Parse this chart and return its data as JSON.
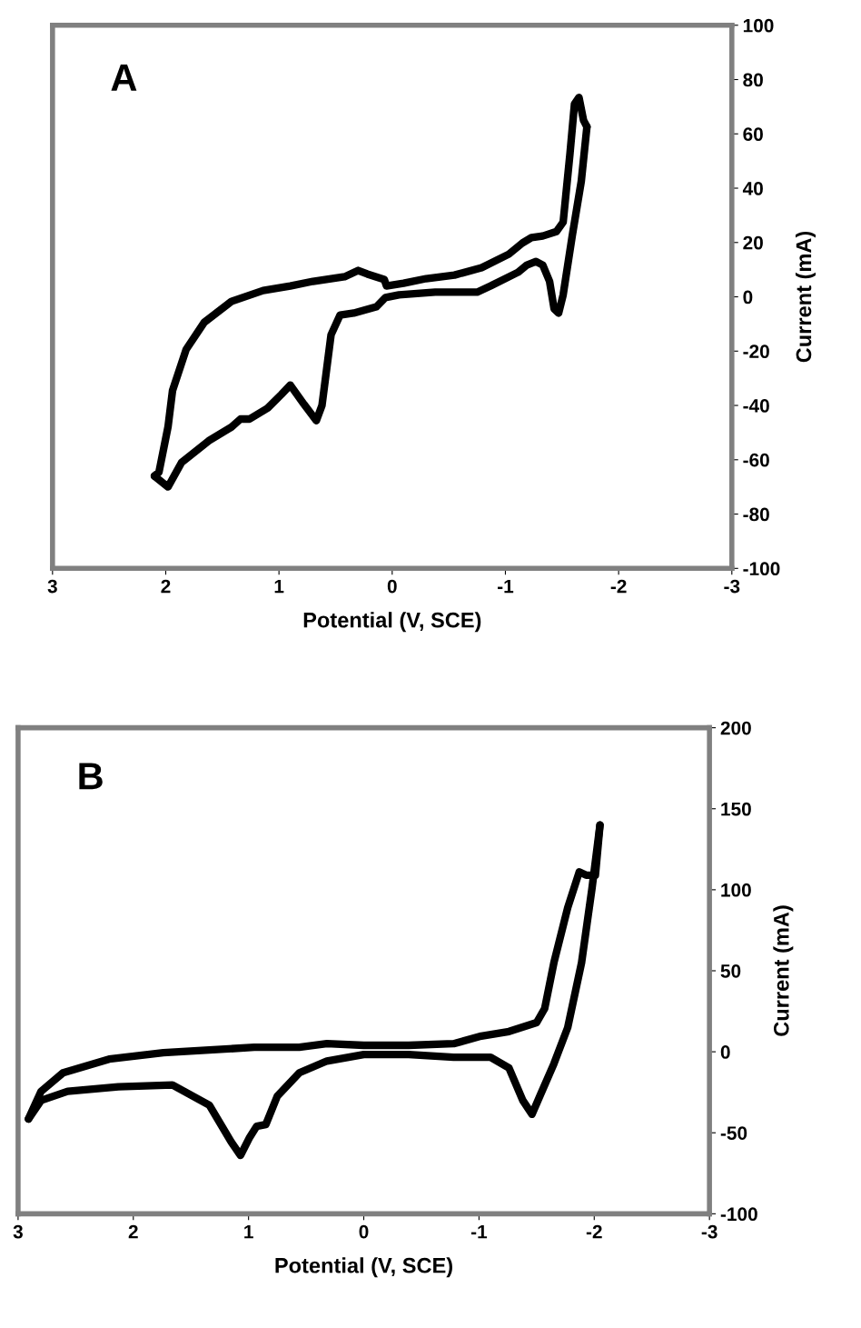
{
  "chart_data": [
    {
      "type": "line",
      "title": "A",
      "xlabel": "Potential (V, SCE)",
      "ylabel": "Current (mA)",
      "xlim": [
        3,
        -3
      ],
      "xticks": [
        3,
        2,
        1,
        0,
        -1,
        -2,
        -3
      ],
      "ylim": [
        -100,
        100
      ],
      "yticks": [
        -100,
        -80,
        -60,
        -40,
        -20,
        0,
        20,
        40,
        60,
        80,
        100
      ],
      "grid": false,
      "legend": false,
      "marker": "none",
      "line_style": "solid",
      "series": [
        {
          "color": "#000000",
          "x": [
            2.1,
            1.98,
            1.86,
            1.62,
            1.42,
            1.34,
            1.26,
            1.1,
            0.98,
            0.9,
            0.78,
            0.67,
            0.62,
            0.54,
            0.46,
            0.34,
            0.14,
            0.06,
            -0.06,
            -0.38,
            -0.75,
            -0.87,
            -1.11,
            -1.19,
            -1.27,
            -1.33,
            -1.39,
            -1.43,
            -1.47,
            -1.51,
            -1.59,
            -1.67,
            -1.72
          ],
          "values": [
            -66,
            -70,
            -61,
            -53,
            -48,
            -45,
            -45,
            -41,
            -36,
            -32.5,
            -39.5,
            -45.6,
            -40,
            -14,
            -6.7,
            -6,
            -3.7,
            -0.3,
            0.7,
            1.7,
            1.7,
            4,
            9,
            11.7,
            13,
            11.7,
            5.7,
            -4.4,
            -6,
            0.7,
            22.4,
            42.5,
            62.6
          ]
        },
        {
          "color": "#000000",
          "x": [
            -1.72,
            -1.69,
            -1.65,
            -1.61,
            -1.57,
            -1.51,
            -1.45,
            -1.33,
            -1.23,
            -1.15,
            -1.03,
            -0.79,
            -0.55,
            -0.3,
            -0.1,
            0.05,
            0.07,
            0.22,
            0.3,
            0.42,
            0.7,
            0.9,
            1.14,
            1.42,
            1.66,
            1.82,
            1.94,
            1.98,
            2.06,
            2.1
          ],
          "values": [
            62.6,
            65,
            73.4,
            71,
            52.6,
            27.5,
            24,
            22.4,
            21.8,
            19.8,
            15.7,
            10.7,
            8,
            6.7,
            5,
            4,
            6.4,
            8.4,
            9.7,
            7.4,
            5.7,
            4,
            2.3,
            -1.7,
            -9.4,
            -19.4,
            -34.5,
            -47.9,
            -64.6,
            -66
          ]
        }
      ]
    },
    {
      "type": "line",
      "title": "B",
      "xlabel": "Potential (V, SCE)",
      "ylabel": "Current (mA)",
      "xlim": [
        3,
        -3
      ],
      "xticks": [
        3,
        2,
        1,
        0,
        -1,
        -2,
        -3
      ],
      "ylim": [
        -100,
        200
      ],
      "yticks": [
        -100,
        -50,
        0,
        50,
        100,
        150,
        200
      ],
      "grid": false,
      "legend": false,
      "marker": "none",
      "line_style": "solid",
      "series": [
        {
          "color": "#000000",
          "x": [
            2.91,
            2.8,
            2.57,
            2.13,
            1.66,
            1.34,
            1.15,
            1.07,
            0.99,
            0.93,
            0.85,
            0.75,
            0.56,
            0.32,
            0.0,
            -0.39,
            -0.78,
            -1.1,
            -1.26,
            -1.38,
            -1.46,
            -1.53,
            -1.65,
            -1.77,
            -1.89,
            -1.98,
            -2.05
          ],
          "values": [
            -41.5,
            -30,
            -24.4,
            -21.6,
            -20.5,
            -33,
            -55.7,
            -64,
            -52.8,
            -46,
            -44.9,
            -27.3,
            -13,
            -5.7,
            -1.7,
            -1.7,
            -3.4,
            -3.4,
            -10,
            -30,
            -38.6,
            -27,
            -7.4,
            15,
            55,
            100.6,
            140
          ]
        },
        {
          "color": "#000000",
          "x": [
            -2.05,
            -2.01,
            -1.93,
            -1.87,
            -1.77,
            -1.65,
            -1.57,
            -1.5,
            -1.26,
            -1.02,
            -0.78,
            -0.39,
            0.0,
            0.32,
            0.56,
            0.95,
            1.34,
            1.74,
            2.21,
            2.61,
            2.8,
            2.91
          ],
          "values": [
            140,
            109,
            109,
            111,
            89,
            55,
            26.7,
            18,
            12.5,
            9.7,
            5,
            4,
            4,
            5,
            2.8,
            2.8,
            1.1,
            -0.6,
            -4.5,
            -13,
            -24.4,
            -41.5
          ]
        }
      ]
    }
  ]
}
